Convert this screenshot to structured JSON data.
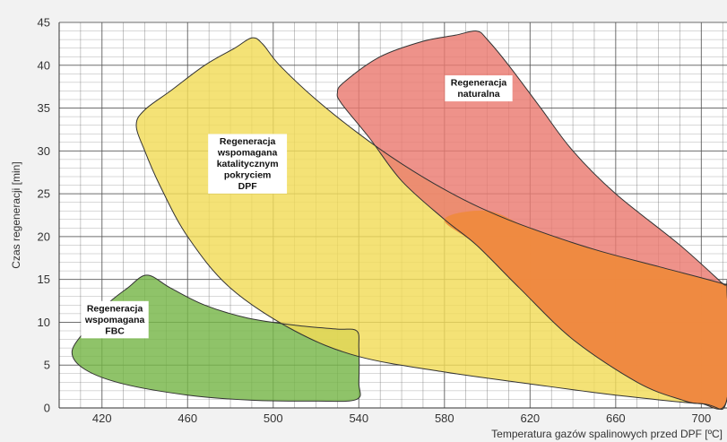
{
  "chart_data": {
    "type": "area",
    "title": "",
    "xlabel": "Temperatura gazów spalinowych przed DPF [ºC]",
    "ylabel": "Czas regeneracji [min]",
    "xlim": [
      400,
      712
    ],
    "ylim": [
      0,
      45
    ],
    "xticks": [
      420,
      460,
      500,
      540,
      580,
      620,
      660,
      700
    ],
    "yticks": [
      0,
      5,
      10,
      15,
      20,
      25,
      30,
      35,
      40,
      45
    ],
    "grid": true,
    "legend": "none",
    "colors": {
      "background": "#f2f2f2",
      "plot_background": "#ffffff",
      "grid": "#555555",
      "outline": "#333333",
      "fbc": "#76b648",
      "catalytic": "#f2dc58",
      "natural": "#ea7a70",
      "overlap": "#f08a3c"
    },
    "regions": [
      {
        "name": "fbc",
        "label_lines": [
          "Regeneracja",
          "wspomagana",
          "FBC"
        ],
        "label_at": [
          426,
          10.3
        ],
        "fill": "#76b648",
        "boundary": [
          [
            406,
            6.5
          ],
          [
            412,
            9.0
          ],
          [
            422,
            12.0
          ],
          [
            432,
            14.0
          ],
          [
            441,
            15.5
          ],
          [
            452,
            14.0
          ],
          [
            468,
            12.0
          ],
          [
            488,
            10.5
          ],
          [
            512,
            9.6
          ],
          [
            530,
            9.2
          ],
          [
            539,
            9.0
          ],
          [
            540,
            7.0
          ],
          [
            540,
            3.0
          ],
          [
            539,
            1.0
          ],
          [
            520,
            0.8
          ],
          [
            490,
            0.9
          ],
          [
            460,
            1.5
          ],
          [
            430,
            2.8
          ],
          [
            412,
            4.5
          ],
          [
            406,
            6.5
          ]
        ]
      },
      {
        "name": "catalytic",
        "label_lines": [
          "Regeneracja",
          "wspomagana",
          "katalitycznym",
          "pokryciem",
          "DPF"
        ],
        "label_at": [
          488,
          28.5
        ],
        "fill": "#f2dc58",
        "boundary": [
          [
            436,
            33.0
          ],
          [
            440,
            34.8
          ],
          [
            452,
            37.0
          ],
          [
            468,
            40.0
          ],
          [
            482,
            42.0
          ],
          [
            490,
            43.2
          ],
          [
            495,
            42.5
          ],
          [
            503,
            40.0
          ],
          [
            520,
            36.0
          ],
          [
            540,
            32.0
          ],
          [
            560,
            28.5
          ],
          [
            580,
            25.5
          ],
          [
            600,
            23.0
          ],
          [
            620,
            21.0
          ],
          [
            650,
            18.5
          ],
          [
            680,
            16.5
          ],
          [
            710,
            14.5
          ],
          [
            712,
            14.0
          ],
          [
            712,
            1.0
          ],
          [
            700,
            0.5
          ],
          [
            660,
            1.5
          ],
          [
            620,
            2.8
          ],
          [
            580,
            4.2
          ],
          [
            540,
            6.0
          ],
          [
            510,
            9.0
          ],
          [
            480,
            14.0
          ],
          [
            460,
            20.0
          ],
          [
            447,
            26.0
          ],
          [
            440,
            30.0
          ],
          [
            436,
            33.0
          ]
        ]
      },
      {
        "name": "natural",
        "label_lines": [
          "Regeneracja",
          "naturalna"
        ],
        "label_at": [
          596,
          37.3
        ],
        "fill": "#ea7a70",
        "boundary": [
          [
            530,
            36.8
          ],
          [
            533,
            38.0
          ],
          [
            550,
            41.0
          ],
          [
            570,
            42.8
          ],
          [
            585,
            43.5
          ],
          [
            595,
            44.0
          ],
          [
            600,
            43.0
          ],
          [
            610,
            40.0
          ],
          [
            625,
            35.0
          ],
          [
            640,
            30.0
          ],
          [
            660,
            25.0
          ],
          [
            690,
            19.0
          ],
          [
            710,
            14.5
          ],
          [
            712,
            14.0
          ],
          [
            712,
            1.0
          ],
          [
            700,
            0.5
          ],
          [
            690,
            1.0
          ],
          [
            670,
            3.0
          ],
          [
            640,
            8.0
          ],
          [
            615,
            14.0
          ],
          [
            595,
            19.0
          ],
          [
            580,
            22.0
          ],
          [
            560,
            26.5
          ],
          [
            545,
            31.5
          ],
          [
            532,
            35.5
          ],
          [
            530,
            36.8
          ]
        ]
      }
    ],
    "overlap_region": {
      "name": "natural-catalytic-overlap",
      "fill": "#f08a3c",
      "boundary": [
        [
          580,
          22.0
        ],
        [
          600,
          23.0
        ],
        [
          620,
          21.0
        ],
        [
          650,
          18.5
        ],
        [
          680,
          16.5
        ],
        [
          710,
          14.5
        ],
        [
          712,
          14.0
        ],
        [
          712,
          1.0
        ],
        [
          700,
          0.5
        ],
        [
          690,
          1.0
        ],
        [
          670,
          3.0
        ],
        [
          640,
          8.0
        ],
        [
          615,
          14.0
        ],
        [
          595,
          19.0
        ],
        [
          580,
          22.0
        ]
      ]
    }
  }
}
